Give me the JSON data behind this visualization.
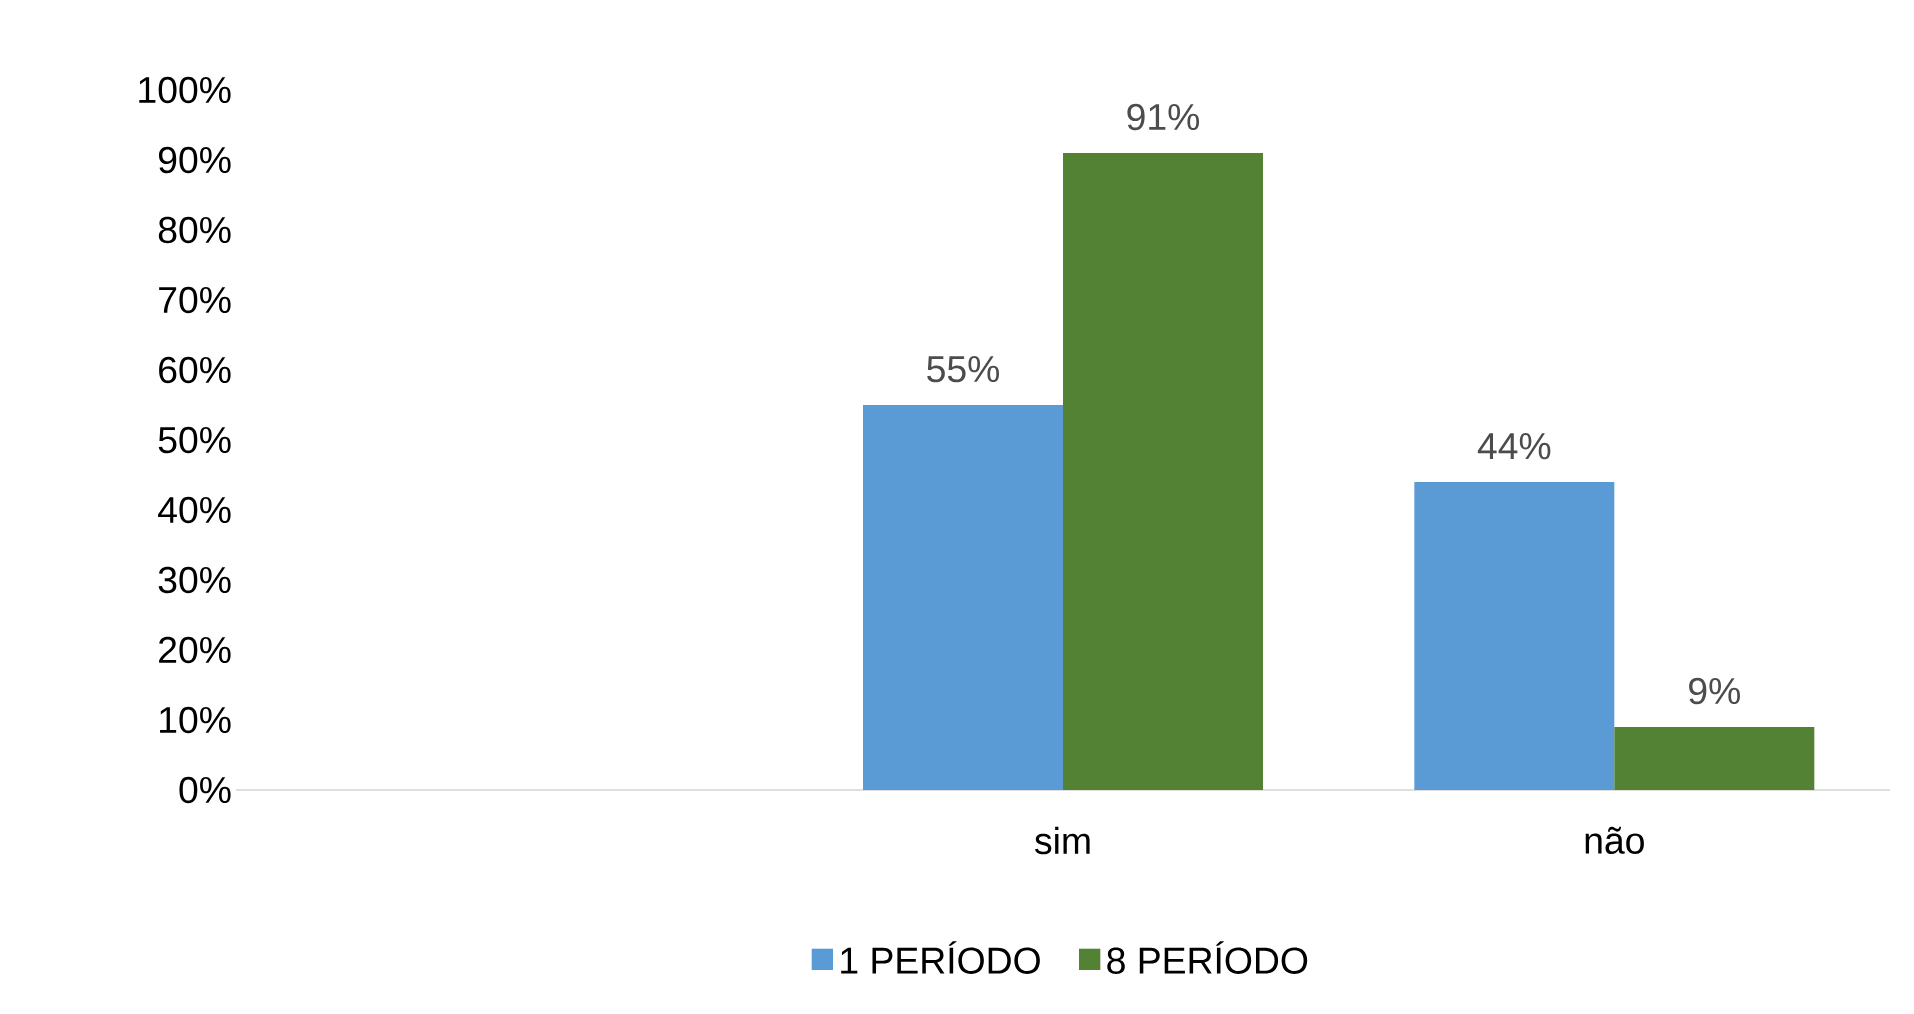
{
  "chart_data": {
    "type": "bar",
    "categories": [
      null,
      "sim",
      "não"
    ],
    "series": [
      {
        "name": "1 PERÍODO",
        "color": "#5b9bd5",
        "values": [
          null,
          55,
          44
        ],
        "value_labels": [
          null,
          "55%",
          "44%"
        ]
      },
      {
        "name": "8 PERÍODO",
        "color": "#548235",
        "values": [
          null,
          91,
          9
        ],
        "value_labels": [
          null,
          "91%",
          "9%"
        ]
      }
    ],
    "ylim": [
      0,
      100
    ],
    "yticks": [
      {
        "value": 0,
        "label": "0%"
      },
      {
        "value": 10,
        "label": "10%"
      },
      {
        "value": 20,
        "label": "20%"
      },
      {
        "value": 30,
        "label": "30%"
      },
      {
        "value": 40,
        "label": "40%"
      },
      {
        "value": 50,
        "label": "50%"
      },
      {
        "value": 60,
        "label": "60%"
      },
      {
        "value": 70,
        "label": "70%"
      },
      {
        "value": 80,
        "label": "80%"
      },
      {
        "value": 90,
        "label": "90%"
      },
      {
        "value": 100,
        "label": "100%"
      }
    ],
    "legend": "bottom"
  }
}
